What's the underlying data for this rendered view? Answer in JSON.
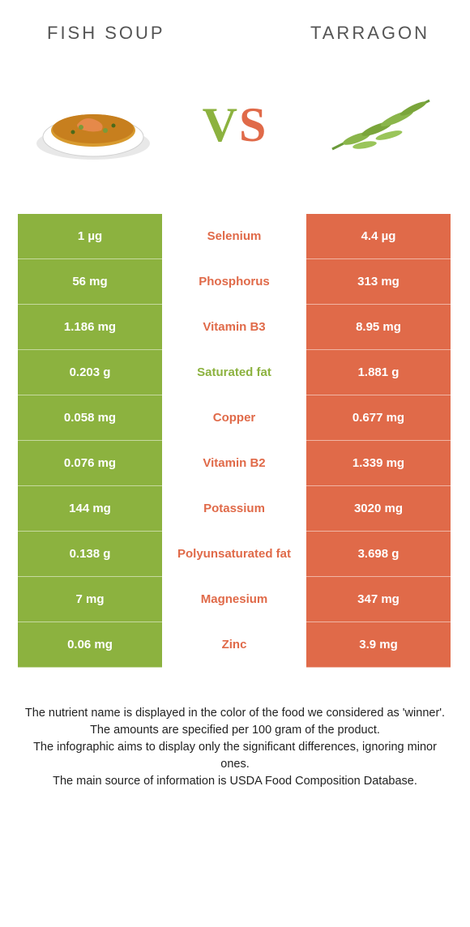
{
  "colors": {
    "left": "#8cb23f",
    "right": "#e06a49",
    "mid_bg": "#ffffff",
    "header_text": "#555555",
    "footer_text": "#222222",
    "vs_v": "#8cb23f",
    "vs_s": "#e06a49"
  },
  "header": {
    "left_title": "Fish soup",
    "right_title": "Tarragon"
  },
  "vs": {
    "v": "V",
    "s": "S"
  },
  "rows": [
    {
      "left": "1 µg",
      "name": "Selenium",
      "right": "4.4 µg",
      "winner": "right"
    },
    {
      "left": "56 mg",
      "name": "Phosphorus",
      "right": "313 mg",
      "winner": "right"
    },
    {
      "left": "1.186 mg",
      "name": "Vitamin B3",
      "right": "8.95 mg",
      "winner": "right"
    },
    {
      "left": "0.203 g",
      "name": "Saturated fat",
      "right": "1.881 g",
      "winner": "left"
    },
    {
      "left": "0.058 mg",
      "name": "Copper",
      "right": "0.677 mg",
      "winner": "right"
    },
    {
      "left": "0.076 mg",
      "name": "Vitamin B2",
      "right": "1.339 mg",
      "winner": "right"
    },
    {
      "left": "144 mg",
      "name": "Potassium",
      "right": "3020 mg",
      "winner": "right"
    },
    {
      "left": "0.138 g",
      "name": "Polyunsaturated fat",
      "right": "3.698 g",
      "winner": "right"
    },
    {
      "left": "7 mg",
      "name": "Magnesium",
      "right": "347 mg",
      "winner": "right"
    },
    {
      "left": "0.06 mg",
      "name": "Zinc",
      "right": "3.9 mg",
      "winner": "right"
    }
  ],
  "footer": {
    "line1": "The nutrient name is displayed in the color of the food we considered as 'winner'.",
    "line2": "The amounts are specified per 100 gram of the product.",
    "line3": "The infographic aims to display only the significant differences, ignoring minor ones.",
    "line4": "The main source of information is USDA Food Composition Database."
  }
}
